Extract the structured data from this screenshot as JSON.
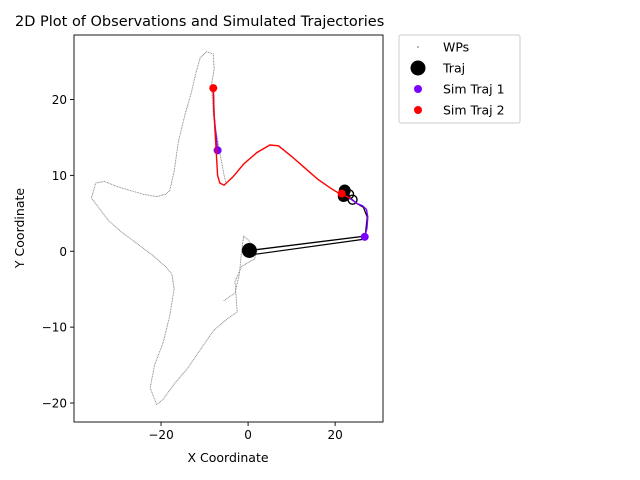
{
  "chart_data": {
    "type": "scatter",
    "title": "2D Plot of Observations and Simulated Trajectories",
    "xlabel": "X Coordinate",
    "ylabel": "Y Coordinate",
    "xlim": [
      -40,
      31
    ],
    "ylim": [
      -22.5,
      28.5
    ],
    "xticks": [
      -20,
      0,
      20
    ],
    "yticks": [
      -20,
      -10,
      0,
      10,
      20
    ],
    "grid": false,
    "legend_position": "outside-top-right",
    "series": [
      {
        "name": "WPs",
        "kind": "dotted-path",
        "color": "#888888",
        "points": [
          [
            -5.5,
            -6.5
          ],
          [
            -3,
            -5.5
          ],
          [
            -2,
            -3
          ],
          [
            -1.5,
            0
          ],
          [
            -1,
            2
          ],
          [
            0,
            1.5
          ],
          [
            2,
            0
          ],
          [
            1.5,
            -1
          ],
          [
            0,
            -1.5
          ],
          [
            -1.5,
            -2
          ],
          [
            -3,
            -4
          ],
          [
            -2.5,
            -8
          ],
          [
            -5,
            -9
          ],
          [
            -8,
            -10.5
          ],
          [
            -11,
            -13
          ],
          [
            -14,
            -15.5
          ],
          [
            -17,
            -17.5
          ],
          [
            -19.5,
            -19.5
          ],
          [
            -21,
            -20.2
          ],
          [
            -22.5,
            -18
          ],
          [
            -21.5,
            -15
          ],
          [
            -19.5,
            -12
          ],
          [
            -18,
            -8.5
          ],
          [
            -17,
            -5
          ],
          [
            -17.5,
            -3
          ],
          [
            -19,
            -2
          ],
          [
            -22,
            -0.5
          ],
          [
            -25.5,
            1
          ],
          [
            -29,
            2.5
          ],
          [
            -32,
            4
          ],
          [
            -34,
            5.5
          ],
          [
            -36,
            7
          ],
          [
            -35,
            9
          ],
          [
            -33,
            9.2
          ],
          [
            -30,
            8.5
          ],
          [
            -27,
            8
          ],
          [
            -24,
            7.5
          ],
          [
            -21,
            7.2
          ],
          [
            -19,
            7.5
          ],
          [
            -18,
            8
          ],
          [
            -17,
            10.5
          ],
          [
            -16,
            14.5
          ],
          [
            -14.5,
            18
          ],
          [
            -13,
            21
          ],
          [
            -12,
            23.5
          ],
          [
            -11,
            25.5
          ],
          [
            -9.5,
            26.3
          ],
          [
            -8,
            26
          ],
          [
            -7.8,
            24
          ],
          [
            -8.4,
            22
          ],
          [
            -8,
            18
          ],
          [
            -6.5,
            13
          ],
          [
            -5.5,
            10
          ],
          [
            -5,
            8.8
          ]
        ]
      },
      {
        "name": "Traj",
        "kind": "markers-and-line",
        "color": "#000000",
        "points": [
          [
            0.3,
            0.1
          ],
          [
            26.8,
            2.0
          ],
          [
            27,
            2.5
          ],
          [
            27.4,
            4.5
          ],
          [
            26.5,
            5.8
          ],
          [
            25,
            6.3
          ],
          [
            23.5,
            7
          ],
          [
            22.5,
            7.5
          ],
          [
            21.8,
            7.8
          ],
          [
            22.3,
            7.0
          ],
          [
            23,
            6.8
          ],
          [
            21.5,
            7.3
          ]
        ],
        "open_markers": [
          [
            24,
            6.8
          ],
          [
            23.2,
            7.5
          ],
          [
            21.8,
            7.2
          ]
        ],
        "big_markers": [
          [
            0.3,
            0.1
          ],
          [
            22,
            7.3
          ],
          [
            22.2,
            8.0
          ]
        ]
      },
      {
        "name": "Sim Traj 1",
        "kind": "line-with-end-marker",
        "color": "#7b00ff",
        "points": [
          [
            -7,
            13.3
          ],
          [
            -7.2,
            14.5
          ],
          [
            -7.5,
            16
          ],
          [
            -7.8,
            18
          ],
          [
            -8,
            21.5
          ]
        ],
        "extra_paths": [
          [
            [
              26.8,
              1.9
            ],
            [
              27.3,
              3
            ],
            [
              27.5,
              4.5
            ],
            [
              27.2,
              5.5
            ],
            [
              26.3,
              6
            ],
            [
              25,
              6.3
            ],
            [
              23.8,
              6.8
            ],
            [
              22.5,
              7.3
            ]
          ]
        ],
        "marker": [
          -7,
          13.3
        ],
        "marker2": [
          26.8,
          1.9
        ]
      },
      {
        "name": "Sim Traj 2",
        "kind": "line-with-end-marker",
        "color": "#ff0000",
        "points": [
          [
            -8,
            21.5
          ],
          [
            -7.8,
            18
          ],
          [
            -7.5,
            15
          ],
          [
            -7.2,
            12
          ],
          [
            -7,
            10
          ],
          [
            -6.5,
            9
          ],
          [
            -5.5,
            8.7
          ],
          [
            -3.5,
            9.8
          ],
          [
            -1,
            11.5
          ],
          [
            2,
            13
          ],
          [
            5,
            14
          ],
          [
            7,
            13.9
          ],
          [
            10,
            12.5
          ],
          [
            13,
            11
          ],
          [
            16,
            9.5
          ],
          [
            19,
            8.3
          ],
          [
            21,
            7.6
          ],
          [
            22.3,
            7.3
          ],
          [
            23.5,
            7.0
          ]
        ],
        "marker": [
          -8,
          21.5
        ],
        "marker2": [
          21.5,
          7.6
        ]
      }
    ]
  }
}
